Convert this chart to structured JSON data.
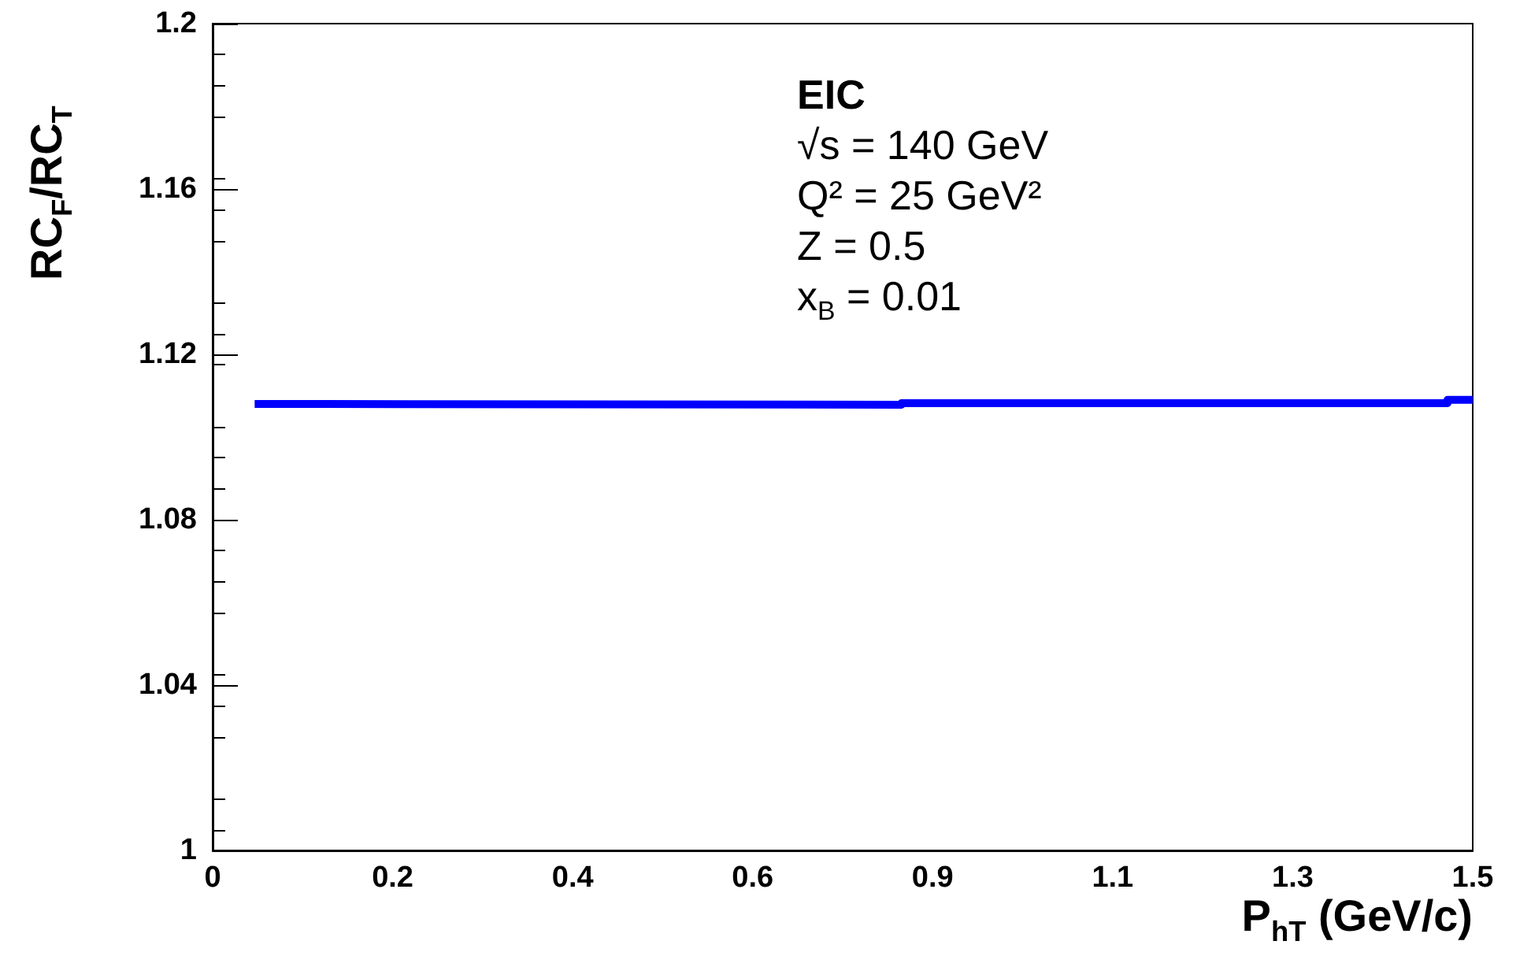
{
  "chart_data": {
    "type": "step",
    "xlabel": "P$_{hT}$ (GeV/c)",
    "ylabel": "RC$_{F}$/RC$_{T}$",
    "annotations": [
      "EIC",
      "√s  = 140 GeV",
      "Q²  = 25 GeV²",
      "Z   = 0.5",
      "x$_{B}$  = 0.01"
    ],
    "x": [
      0.05,
      0.13,
      0.82,
      1.47,
      1.5
    ],
    "series": [
      {
        "color": "#0000ff",
        "values": [
          1.108,
          1.1078,
          1.1082,
          1.109,
          1.109
        ]
      }
    ],
    "xlim": [
      0,
      1.5
    ],
    "xticks": [
      0,
      {
        "value": 0.2143,
        "label": "0.2"
      },
      {
        "value": 0.4286,
        "label": "0.4"
      },
      {
        "value": 0.6429,
        "label": "0.6"
      },
      {
        "value": 0.8571,
        "label": "0.9"
      },
      {
        "value": 1.0714,
        "label": "1.1"
      },
      {
        "value": 1.2857,
        "label": "1.3"
      },
      1.5
    ],
    "ylim": [
      1,
      1.2
    ],
    "yticks": [
      1,
      1.04,
      1.08,
      1.12,
      1.16,
      1.2
    ],
    "grid": false
  }
}
